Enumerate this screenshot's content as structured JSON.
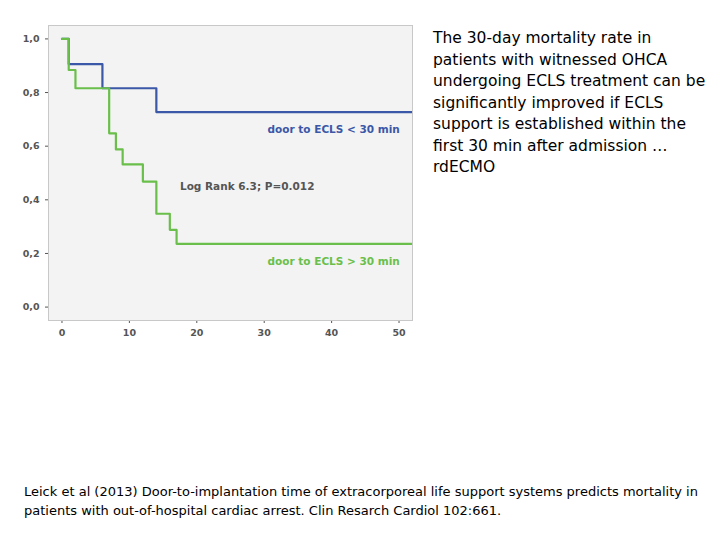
{
  "chart_data": {
    "type": "line",
    "line_style": "step",
    "series": [
      {
        "name": "door to ECLS < 30 min",
        "color": "#3b57a8",
        "x": [
          0,
          1,
          6,
          14,
          52
        ],
        "values": [
          1.0,
          0.906,
          0.816,
          0.727,
          0.727
        ]
      },
      {
        "name": "door to ECLS > 30 min",
        "color": "#6abf4b",
        "x": [
          0,
          1,
          2,
          7,
          8,
          9,
          12,
          14,
          16,
          17,
          52
        ],
        "values": [
          1.0,
          0.884,
          0.816,
          0.648,
          0.588,
          0.532,
          0.468,
          0.348,
          0.288,
          0.236,
          0.236
        ]
      }
    ],
    "annotations": [
      "Log Rank 6.3; P=0.012"
    ],
    "xlim": [
      -2,
      52
    ],
    "ylim": [
      -0.05,
      1.05
    ],
    "xticks": [
      0,
      10,
      20,
      30,
      40,
      50
    ],
    "yticks": [
      {
        "value": 0.0,
        "label": "0,0"
      },
      {
        "value": 0.2,
        "label": "0,2"
      },
      {
        "value": 0.4,
        "label": "0,4"
      },
      {
        "value": 0.6,
        "label": "0,6"
      },
      {
        "value": 0.8,
        "label": "0,8"
      },
      {
        "value": 1.0,
        "label": "1,0"
      }
    ],
    "grid": false,
    "side_note": "The 30-day mortality rate in patients with witnessed OHCA undergoing ECLS treatment can be significantly improved if ECLS support is established within the first 30 min after admission …rdECMO",
    "source": "Leick et al (2013) Door-to-implantation time of extracorporeal life support systems predicts mortality in patients with out-of-hospital cardiac arrest. Clin Resarch Cardiol 102:661."
  }
}
